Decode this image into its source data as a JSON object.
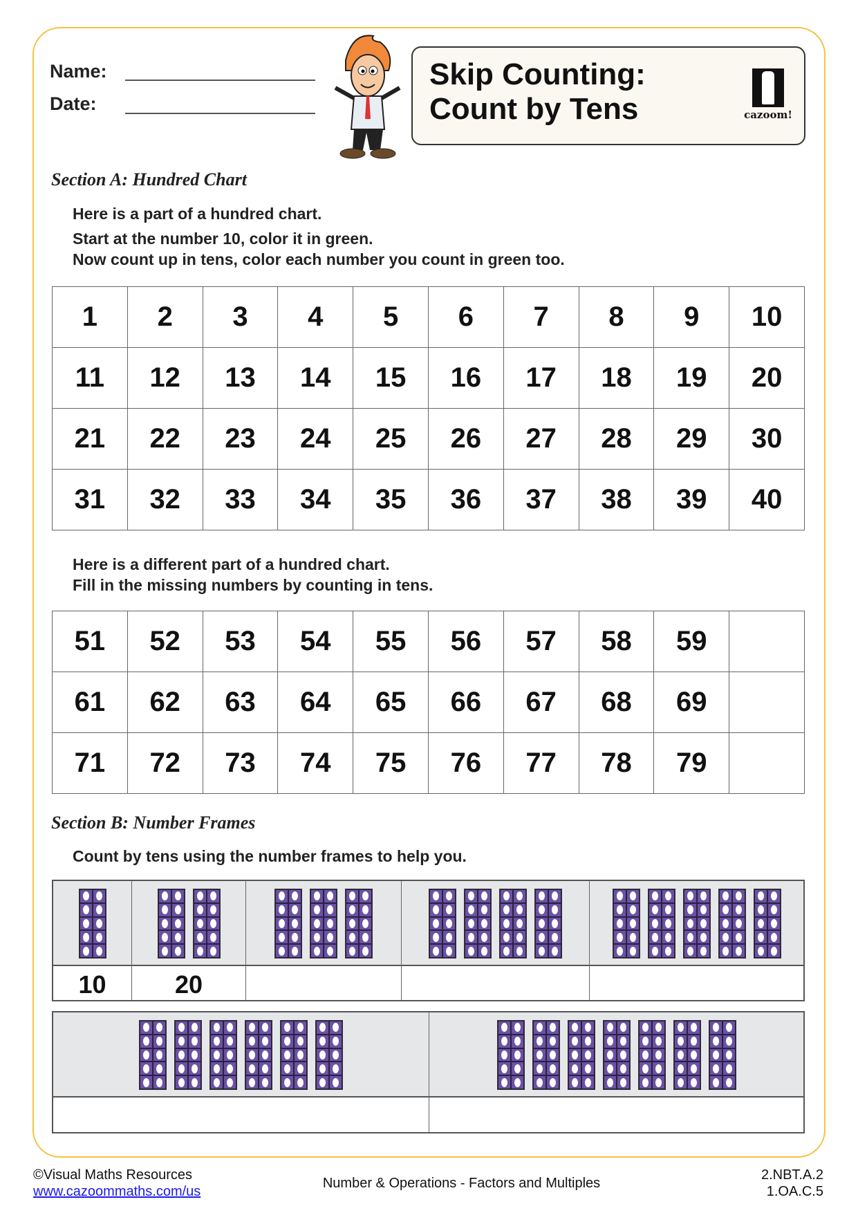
{
  "header": {
    "name_label": "Name:",
    "date_label": "Date:",
    "title_line1": "Skip Counting:",
    "title_line2": "Count by Tens",
    "logo_text": "cazoom!"
  },
  "section_a": {
    "heading": "Section A: Hundred Chart",
    "instructions1": [
      "Here is a part of a hundred chart.",
      "Start at the number 10, color it in green.",
      "Now count up in tens, color each number you count in green too."
    ],
    "chart1": [
      [
        "1",
        "2",
        "3",
        "4",
        "5",
        "6",
        "7",
        "8",
        "9",
        "10"
      ],
      [
        "11",
        "12",
        "13",
        "14",
        "15",
        "16",
        "17",
        "18",
        "19",
        "20"
      ],
      [
        "21",
        "22",
        "23",
        "24",
        "25",
        "26",
        "27",
        "28",
        "29",
        "30"
      ],
      [
        "31",
        "32",
        "33",
        "34",
        "35",
        "36",
        "37",
        "38",
        "39",
        "40"
      ]
    ],
    "instructions2": [
      "Here is a different part of a hundred chart.",
      "Fill in the missing numbers by counting in tens."
    ],
    "chart2": [
      [
        "51",
        "52",
        "53",
        "54",
        "55",
        "56",
        "57",
        "58",
        "59",
        ""
      ],
      [
        "61",
        "62",
        "63",
        "64",
        "65",
        "66",
        "67",
        "68",
        "69",
        ""
      ],
      [
        "71",
        "72",
        "73",
        "74",
        "75",
        "76",
        "77",
        "78",
        "79",
        ""
      ]
    ]
  },
  "section_b": {
    "heading": "Section B: Number Frames",
    "instruction": "Count by tens using the number frames to help you.",
    "row1": [
      {
        "frames": 1,
        "answer": "10"
      },
      {
        "frames": 2,
        "answer": "20"
      },
      {
        "frames": 3,
        "answer": ""
      },
      {
        "frames": 4,
        "answer": ""
      },
      {
        "frames": 5,
        "answer": ""
      }
    ],
    "row2": [
      {
        "frames": 6,
        "answer": ""
      },
      {
        "frames": 7,
        "answer": ""
      }
    ],
    "frame_color": "#6b52a3"
  },
  "footer": {
    "copyright": "©Visual Maths Resources",
    "url": "www.cazoommaths.com/us",
    "topic": "Number & Operations - Factors and Multiples",
    "standard1": "2.NBT.A.2",
    "standard2": "1.OA.C.5"
  }
}
